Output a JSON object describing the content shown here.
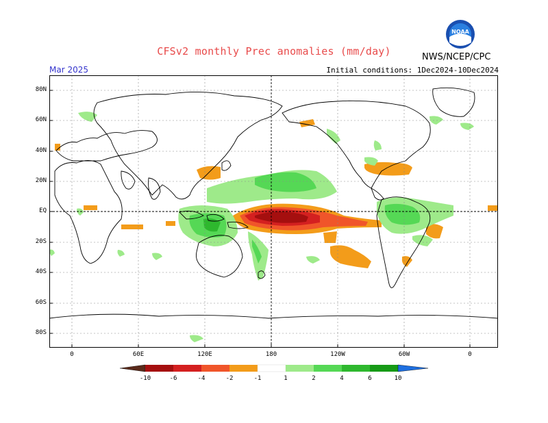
{
  "header": {
    "title": "CFSv2 monthly Prec anomalies (mm/day)",
    "valid_month": "Mar 2025",
    "init_conditions": "Initial conditions: 1Dec2024-10Dec2024",
    "agency": "NWS/NCEP/CPC",
    "logo_text": "NOAA"
  },
  "map": {
    "lon_labels": [
      "0",
      "60E",
      "120E",
      "180",
      "120W",
      "60W",
      "0"
    ],
    "lat_labels": [
      "80N",
      "60N",
      "40N",
      "20N",
      "EQ",
      "20S",
      "40S",
      "60S",
      "80S"
    ]
  },
  "colorbar": {
    "labels": [
      "-10",
      "-6",
      "-4",
      "-2",
      "-1",
      "1",
      "2",
      "4",
      "6",
      "10"
    ],
    "colors": [
      "#5a2a1a",
      "#a50f0f",
      "#d42020",
      "#f0552a",
      "#f39c1a",
      "#ffffff",
      "#9eea8a",
      "#55d855",
      "#2eb82e",
      "#169a16",
      "#1e6fe0"
    ]
  }
}
